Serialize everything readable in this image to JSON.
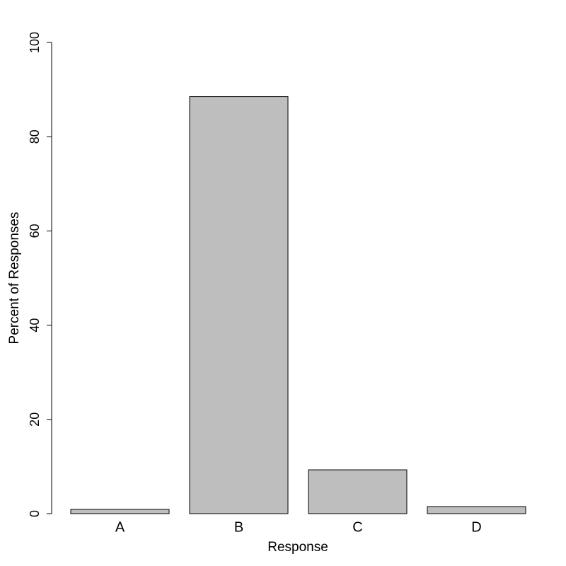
{
  "chart_data": {
    "type": "bar",
    "x_label": "Response",
    "y_label": "Percent of Responses",
    "categories": [
      "A",
      "B",
      "C",
      "D"
    ],
    "values": [
      0.9,
      88.5,
      9.3,
      1.5
    ],
    "color": "#bebebe",
    "ylim": [
      0,
      100
    ],
    "yticks": [
      0,
      20,
      40,
      60,
      80,
      100
    ],
    "grid": false
  }
}
